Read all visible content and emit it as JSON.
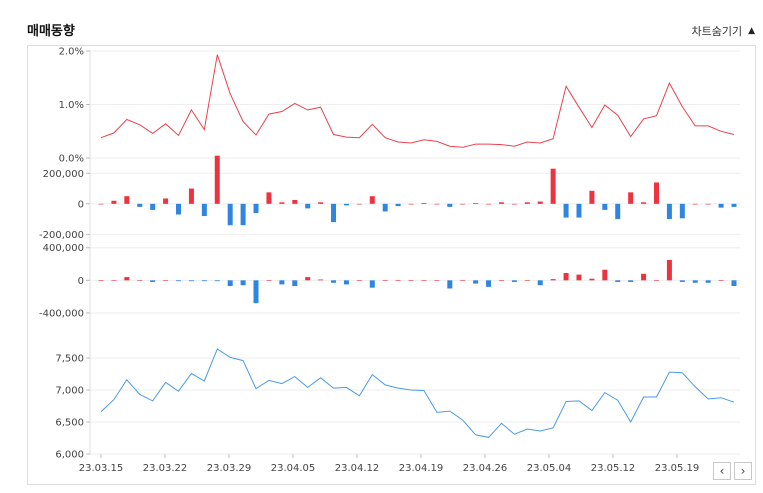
{
  "header": {
    "title": "매매동향",
    "toggle_label": "차트숨기기",
    "toggle_icon": "caret-up-icon"
  },
  "nav": {
    "prev_icon": "chevron-left-icon",
    "next_icon": "chevron-right-icon",
    "prev_label": "‹",
    "next_label": "›",
    "toggle_arrow": "▲"
  },
  "colors": {
    "rate_line": "#e8434e",
    "positive_bar": "#ee3340",
    "negative_bar": "#2e86e0",
    "price_line": "#4a9be6",
    "grid": "#eeeeee"
  },
  "chart_data": [
    {
      "type": "line",
      "ylim": [
        0,
        2
      ],
      "yticks": [
        0,
        1,
        2
      ],
      "ytick_labels": [
        "0.0%",
        "1.0%",
        "2.0%"
      ],
      "values": [
        0.38,
        0.47,
        0.72,
        0.62,
        0.46,
        0.64,
        0.42,
        0.9,
        0.53,
        1.93,
        1.2,
        0.68,
        0.43,
        0.82,
        0.87,
        1.02,
        0.9,
        0.95,
        0.44,
        0.39,
        0.38,
        0.63,
        0.38,
        0.3,
        0.28,
        0.34,
        0.31,
        0.22,
        0.2,
        0.26,
        0.26,
        0.25,
        0.22,
        0.3,
        0.28,
        0.36,
        1.34,
        0.95,
        0.57,
        0.99,
        0.8,
        0.4,
        0.73,
        0.79,
        1.4,
        0.96,
        0.6,
        0.6,
        0.5,
        0.44
      ]
    },
    {
      "type": "bar",
      "ylim": [
        -250000,
        300000
      ],
      "yticks": [
        -200000,
        0,
        200000
      ],
      "ytick_labels": [
        "-200,000",
        "0",
        "200,000"
      ],
      "values": [
        0,
        20000,
        50000,
        -20000,
        -40000,
        35000,
        -70000,
        100000,
        -80000,
        315000,
        -140000,
        -140000,
        -60000,
        75000,
        10000,
        25000,
        -30000,
        10000,
        -120000,
        -10000,
        0,
        50000,
        -50000,
        -15000,
        0,
        5000,
        0,
        -20000,
        0,
        5000,
        0,
        10000,
        0,
        10000,
        15000,
        230000,
        -90000,
        -90000,
        85000,
        -40000,
        -100000,
        75000,
        10000,
        140000,
        -100000,
        -95000,
        0,
        0,
        -25000,
        -20000
      ]
    },
    {
      "type": "bar",
      "ylim": [
        -560000,
        470000
      ],
      "yticks": [
        -400000,
        0,
        400000
      ],
      "ytick_labels": [
        "-400,000",
        "0",
        "400,000"
      ],
      "values": [
        0,
        0,
        40000,
        0,
        -20000,
        0,
        -10000,
        -10000,
        -10000,
        -10000,
        -70000,
        -60000,
        -280000,
        0,
        -50000,
        -70000,
        40000,
        10000,
        -30000,
        -50000,
        0,
        -90000,
        0,
        0,
        0,
        0,
        0,
        -100000,
        0,
        -40000,
        -80000,
        0,
        -20000,
        0,
        -60000,
        15000,
        90000,
        70000,
        20000,
        130000,
        -20000,
        -20000,
        80000,
        0,
        250000,
        -20000,
        -30000,
        -30000,
        0,
        -70000
      ]
    },
    {
      "type": "line",
      "x_tick_labels": [
        "23.03.15",
        "23.03.22",
        "23.03.29",
        "23.04.05",
        "23.04.12",
        "23.04.19",
        "23.04.26",
        "23.05.04",
        "23.05.12",
        "23.05.19"
      ],
      "ylim": [
        6000,
        8000
      ],
      "yticks": [
        6000,
        6500,
        7000,
        7500
      ],
      "ytick_labels": [
        "6,000",
        "6,500",
        "7,000",
        "7,500"
      ],
      "values": [
        6660,
        6850,
        7160,
        6930,
        6830,
        7120,
        6980,
        7260,
        7140,
        7640,
        7510,
        7460,
        7020,
        7150,
        7100,
        7210,
        7040,
        7190,
        7030,
        7040,
        6910,
        7240,
        7080,
        7030,
        7000,
        6990,
        6650,
        6670,
        6530,
        6300,
        6260,
        6480,
        6310,
        6390,
        6360,
        6410,
        6820,
        6830,
        6680,
        6960,
        6840,
        6500,
        6890,
        6890,
        7280,
        7270,
        7050,
        6860,
        6880,
        6810
      ]
    }
  ]
}
